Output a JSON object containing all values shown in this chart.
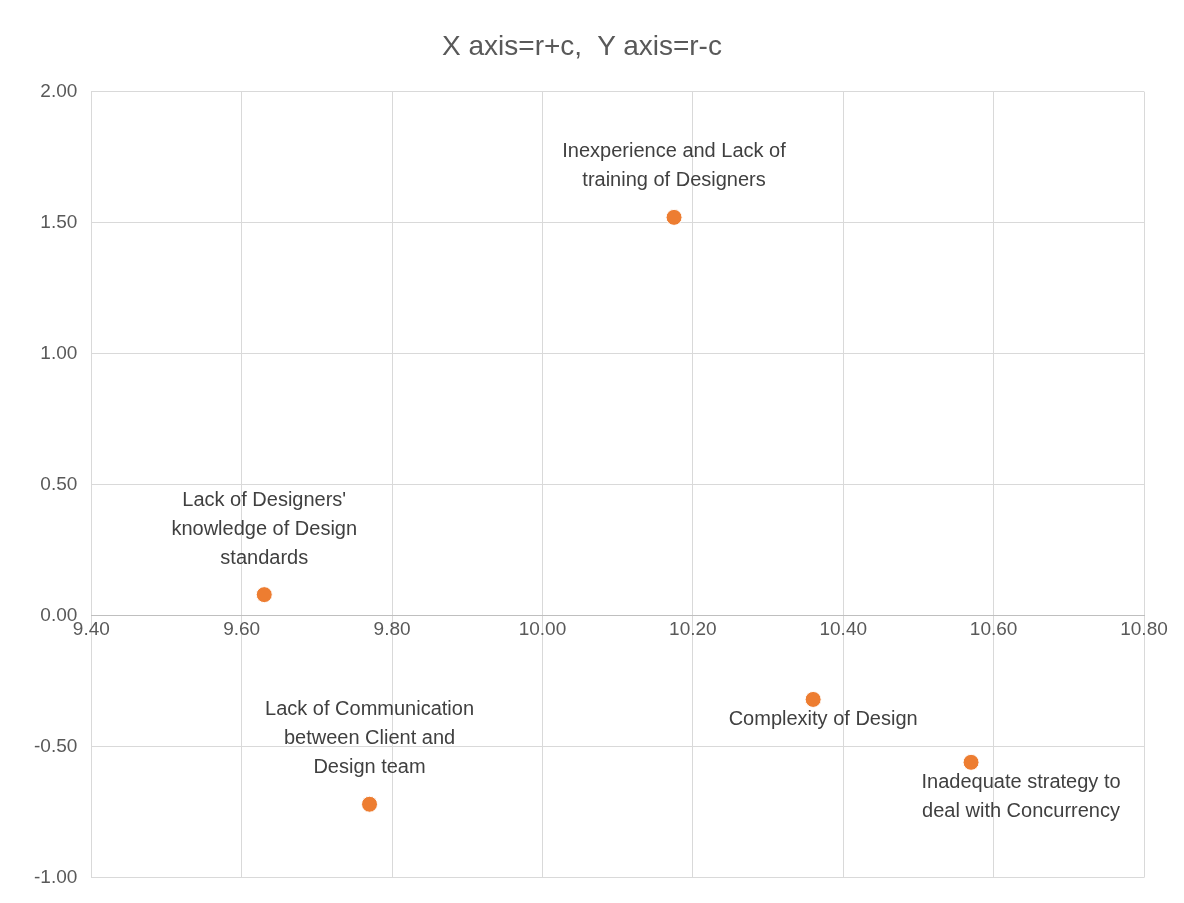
{
  "chart_data": {
    "type": "scatter",
    "title": "X axis=r+c,  Y axis=r-c",
    "series": [
      {
        "color": "#ed7d31",
        "x": [
          10.175,
          9.63,
          9.77,
          10.36,
          10.57
        ],
        "values": [
          1.52,
          0.08,
          -0.72,
          -0.32,
          -0.56
        ]
      }
    ],
    "xlim": [
      9.4,
      10.8
    ],
    "xticks": [
      {
        "value": 9.4,
        "label": "9.40"
      },
      {
        "value": 9.6,
        "label": "9.60"
      },
      {
        "value": 9.8,
        "label": "9.80"
      },
      {
        "value": 10.0,
        "label": "10.00"
      },
      {
        "value": 10.2,
        "label": "10.20"
      },
      {
        "value": 10.4,
        "label": "10.40"
      },
      {
        "value": 10.6,
        "label": "10.60"
      },
      {
        "value": 10.8,
        "label": "10.80"
      }
    ],
    "ylim": [
      -1,
      2
    ],
    "yticks": [
      {
        "value": -1,
        "label": "-1.00"
      },
      {
        "value": -0.5,
        "label": "-0.50"
      },
      {
        "value": 0,
        "label": "0.00"
      },
      {
        "value": 0.5,
        "label": "0.50"
      },
      {
        "value": 1,
        "label": "1.00"
      },
      {
        "value": 1.5,
        "label": "1.50"
      },
      {
        "value": 2,
        "label": "2.00"
      }
    ],
    "annotations": [
      {
        "text": "Inexperience and Lack of training of Designers",
        "x": 10.175,
        "y": 1.52
      },
      {
        "text": "Lack of Designers' knowledge of Design standards",
        "x": 9.63,
        "y": 0.08
      },
      {
        "text": "Lack of Communication between Client and Design team",
        "x": 9.77,
        "y": -0.72
      },
      {
        "text": "Complexity of Design",
        "x": 10.36,
        "y": -0.32
      },
      {
        "text": "Inadequate strategy to deal with Concurrency",
        "x": 10.57,
        "y": -0.56
      }
    ],
    "grid": true,
    "legend": false,
    "marker": "circle"
  }
}
